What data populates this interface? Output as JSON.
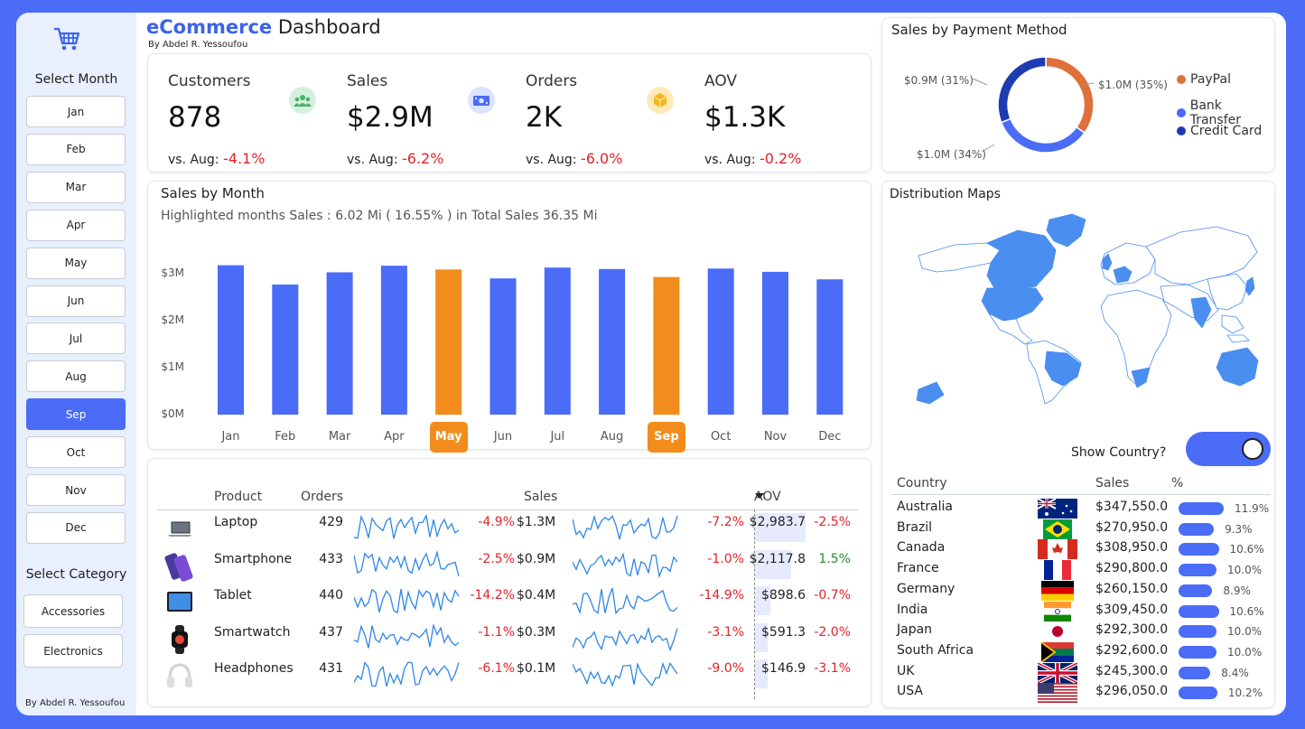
{
  "sidebar": {
    "cart_icon": "cart-icon",
    "select_month_label": "Select Month",
    "months": [
      "Jan",
      "Feb",
      "Mar",
      "Apr",
      "May",
      "Jun",
      "Jul",
      "Aug",
      "Sep",
      "Oct",
      "Nov",
      "Dec"
    ],
    "active_month": "Sep",
    "select_category_label": "Select Category",
    "categories": [
      "Accessories",
      "Electronics"
    ],
    "credit": "By Abdel R. Yessoufou"
  },
  "header": {
    "title_bold": "eCommerce",
    "title_rest": "Dashboard",
    "byline": "By Abdel R. Yessoufou"
  },
  "kpis": [
    {
      "label": "Customers",
      "value": "878",
      "cmp_prefix": "vs. Aug: ",
      "cmp_value": "-4.1%",
      "icon": "customers-icon",
      "icon_bg": "#d5f1dd"
    },
    {
      "label": "Sales",
      "value": "$2.9M",
      "cmp_prefix": "vs. Aug: ",
      "cmp_value": "-6.2%",
      "icon": "money-icon",
      "icon_bg": "#dbe3ff"
    },
    {
      "label": "Orders",
      "value": "2K",
      "cmp_prefix": "vs. Aug: ",
      "cmp_value": "-6.0%",
      "icon": "box-icon",
      "icon_bg": "#fdeab8"
    },
    {
      "label": "AOV",
      "value": "$1.3K",
      "cmp_prefix": "vs. Aug: ",
      "cmp_value": "-0.2%",
      "icon": "",
      "icon_bg": ""
    }
  ],
  "sales_by_month": {
    "title": "Sales by Month",
    "subtitle": "Highlighted months Sales : 6.02 Mi ( 16.55% ) in Total Sales 36.35 Mi",
    "chart_data": {
      "type": "bar",
      "categories": [
        "Jan",
        "Feb",
        "Mar",
        "Apr",
        "May",
        "Jun",
        "Jul",
        "Aug",
        "Sep",
        "Oct",
        "Nov",
        "Dec"
      ],
      "values": [
        3.18,
        2.77,
        3.03,
        3.17,
        3.09,
        2.9,
        3.13,
        3.1,
        2.93,
        3.11,
        3.04,
        2.88
      ],
      "highlighted": [
        "May",
        "Sep"
      ],
      "yticks": [
        "$0M",
        "$1M",
        "$2M",
        "$3M"
      ],
      "ylim": [
        0,
        3.4
      ],
      "colors": {
        "base": "#4a6cf7",
        "highlight": "#f28c1c"
      }
    }
  },
  "products": {
    "headers": {
      "product": "Product",
      "orders": "Orders",
      "sales": "Sales",
      "aov": "AOV"
    },
    "rows": [
      {
        "name": "Laptop",
        "orders": "429",
        "orders_delta": "-4.9%",
        "sales": "$1.3M",
        "sales_delta": "-7.2%",
        "aov": "$2,983.7",
        "aov_frac": 1.0,
        "aov_delta": "-2.5%",
        "aov_sign": "neg",
        "icon": "laptop-icon"
      },
      {
        "name": "Smartphone",
        "orders": "433",
        "orders_delta": "-2.5%",
        "sales": "$0.9M",
        "sales_delta": "-1.0%",
        "aov": "$2,117.8",
        "aov_frac": 0.71,
        "aov_delta": "1.5%",
        "aov_sign": "pos",
        "icon": "smartphone-icon"
      },
      {
        "name": "Tablet",
        "orders": "440",
        "orders_delta": "-14.2%",
        "sales": "$0.4M",
        "sales_delta": "-14.9%",
        "aov": "$898.6",
        "aov_frac": 0.3,
        "aov_delta": "-0.7%",
        "aov_sign": "neg",
        "icon": "tablet-icon"
      },
      {
        "name": "Smartwatch",
        "orders": "437",
        "orders_delta": "-1.1%",
        "sales": "$0.3M",
        "sales_delta": "-3.1%",
        "aov": "$591.3",
        "aov_frac": 0.2,
        "aov_delta": "-2.0%",
        "aov_sign": "neg",
        "icon": "smartwatch-icon"
      },
      {
        "name": "Headphones",
        "orders": "431",
        "orders_delta": "-6.1%",
        "sales": "$0.1M",
        "sales_delta": "-9.0%",
        "aov": "$146.9",
        "aov_frac": 0.05,
        "aov_delta": "-3.1%",
        "aov_sign": "neg",
        "icon": "headphones-icon"
      }
    ]
  },
  "payment": {
    "title": "Sales by Payment Method",
    "chart_data": {
      "type": "pie",
      "labels": [
        "PayPal",
        "Bank Transfer",
        "Credit Card"
      ],
      "values": [
        35,
        34,
        31
      ],
      "value_labels": [
        "$1.0M (35%)",
        "$1.0M (34%)",
        "$0.9M (31%)"
      ],
      "colors": [
        "#e0703a",
        "#4a6cf7",
        "#1f3bb3"
      ]
    }
  },
  "map": {
    "title": "Distribution Maps",
    "toggle_label": "Show Country?",
    "toggle_on": true,
    "colors": {
      "highlight": "#4a8ef0",
      "land": "#ffffff",
      "border": "#4a8ef0"
    }
  },
  "countries": {
    "headers": {
      "country": "Country",
      "sales": "Sales",
      "pct": "%"
    },
    "rows": [
      {
        "name": "Australia",
        "sales": "$347,550.0",
        "pct": "11.9%",
        "pct_value": 11.9,
        "flag": "australia-flag-icon"
      },
      {
        "name": "Brazil",
        "sales": "$270,950.0",
        "pct": "9.3%",
        "pct_value": 9.3,
        "flag": "brazil-flag-icon"
      },
      {
        "name": "Canada",
        "sales": "$308,950.0",
        "pct": "10.6%",
        "pct_value": 10.6,
        "flag": "canada-flag-icon"
      },
      {
        "name": "France",
        "sales": "$290,800.0",
        "pct": "10.0%",
        "pct_value": 10.0,
        "flag": "france-flag-icon"
      },
      {
        "name": "Germany",
        "sales": "$260,150.0",
        "pct": "8.9%",
        "pct_value": 8.9,
        "flag": "germany-flag-icon"
      },
      {
        "name": "India",
        "sales": "$309,450.0",
        "pct": "10.6%",
        "pct_value": 10.6,
        "flag": "india-flag-icon"
      },
      {
        "name": "Japan",
        "sales": "$292,300.0",
        "pct": "10.0%",
        "pct_value": 10.0,
        "flag": "japan-flag-icon"
      },
      {
        "name": "South Africa",
        "sales": "$292,600.0",
        "pct": "10.0%",
        "pct_value": 10.0,
        "flag": "south-africa-flag-icon"
      },
      {
        "name": "UK",
        "sales": "$245,300.0",
        "pct": "8.4%",
        "pct_value": 8.4,
        "flag": "uk-flag-icon"
      },
      {
        "name": "USA",
        "sales": "$296,050.0",
        "pct": "10.2%",
        "pct_value": 10.2,
        "flag": "usa-flag-icon"
      }
    ]
  }
}
